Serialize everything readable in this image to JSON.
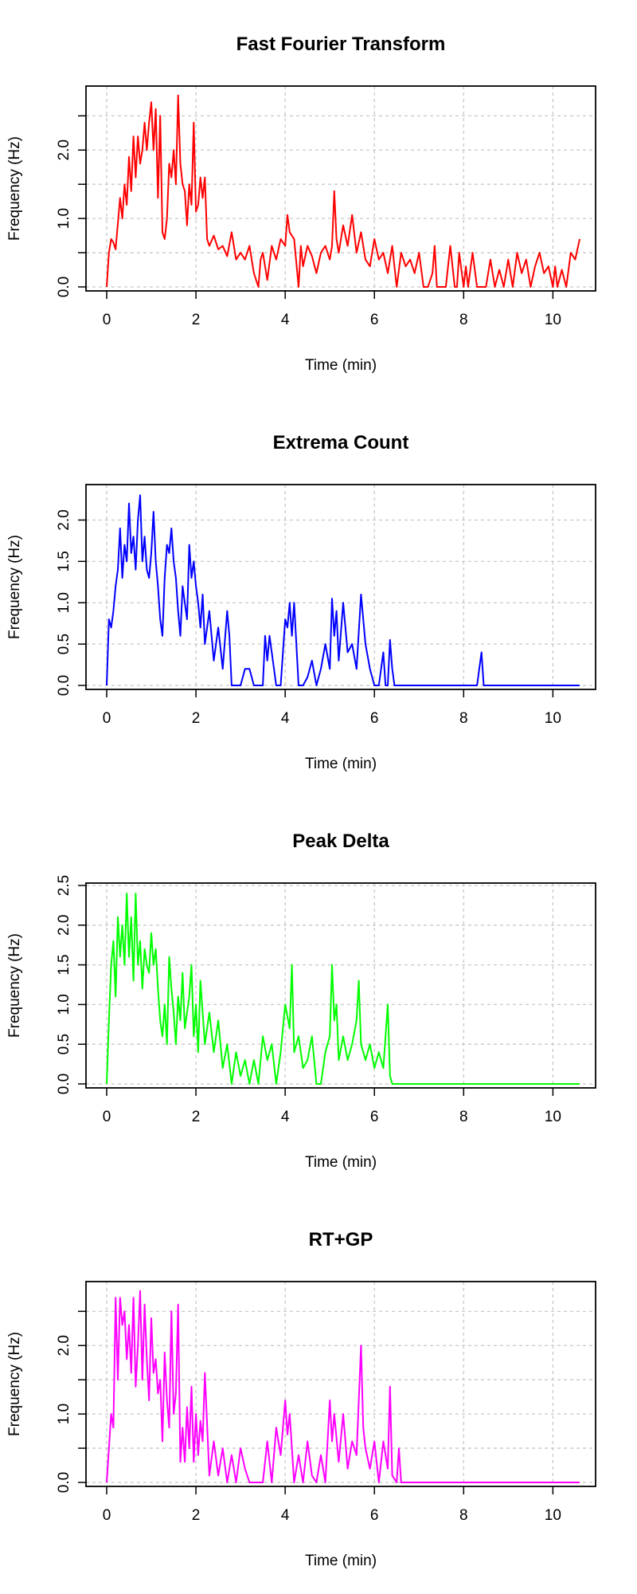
{
  "chart_data": [
    {
      "type": "line",
      "title": "Fast Fourier Transform",
      "xlabel": "Time (min)",
      "ylabel": "Frequency (Hz)",
      "xlim": [
        0,
        10.6
      ],
      "ylim": [
        0,
        2.9
      ],
      "xticks": [
        0,
        2,
        4,
        6,
        8,
        10
      ],
      "xtick_labels": [
        "0",
        "2",
        "4",
        "6",
        "8",
        "10"
      ],
      "yticks": [
        0,
        0.5,
        1.0,
        1.5,
        2.0,
        2.5
      ],
      "ytick_labels": [
        "0.0",
        "",
        "1.0",
        "",
        "2.0",
        ""
      ],
      "grid": true,
      "color": "#ff0000",
      "series": [
        {
          "x": [
            0,
            0.05,
            0.1,
            0.15,
            0.2,
            0.3,
            0.35,
            0.4,
            0.45,
            0.5,
            0.55,
            0.6,
            0.65,
            0.7,
            0.75,
            0.8,
            0.85,
            0.9,
            0.95,
            1.0,
            1.05,
            1.1,
            1.15,
            1.2,
            1.25,
            1.3,
            1.35,
            1.4,
            1.45,
            1.5,
            1.55,
            1.6,
            1.65,
            1.7,
            1.75,
            1.8,
            1.85,
            1.9,
            1.95,
            2.0,
            2.05,
            2.1,
            2.15,
            2.2,
            2.25,
            2.3,
            2.4,
            2.5,
            2.6,
            2.7,
            2.8,
            2.9,
            3.0,
            3.1,
            3.2,
            3.3,
            3.4,
            3.45,
            3.5,
            3.6,
            3.7,
            3.8,
            3.9,
            4.0,
            4.05,
            4.1,
            4.2,
            4.3,
            4.35,
            4.4,
            4.5,
            4.6,
            4.7,
            4.8,
            4.9,
            5.0,
            5.05,
            5.1,
            5.15,
            5.2,
            5.3,
            5.4,
            5.5,
            5.6,
            5.7,
            5.8,
            5.9,
            6.0,
            6.1,
            6.2,
            6.3,
            6.4,
            6.5,
            6.6,
            6.7,
            6.8,
            6.9,
            7.0,
            7.1,
            7.2,
            7.3,
            7.35,
            7.4,
            7.5,
            7.6,
            7.7,
            7.8,
            7.85,
            7.9,
            8.0,
            8.05,
            8.1,
            8.2,
            8.3,
            8.4,
            8.5,
            8.6,
            8.7,
            8.8,
            8.9,
            9.0,
            9.1,
            9.2,
            9.3,
            9.4,
            9.5,
            9.6,
            9.7,
            9.8,
            9.9,
            10.0,
            10.05,
            10.1,
            10.2,
            10.3,
            10.4,
            10.5,
            10.6
          ],
          "y": [
            0,
            0.5,
            0.7,
            0.65,
            0.55,
            1.3,
            1.0,
            1.5,
            1.2,
            1.9,
            1.4,
            2.2,
            1.6,
            2.2,
            1.8,
            2.0,
            2.4,
            2.0,
            2.4,
            2.7,
            2.0,
            2.6,
            1.3,
            2.5,
            0.8,
            0.7,
            1.0,
            1.8,
            1.6,
            2.0,
            1.5,
            2.8,
            1.8,
            1.5,
            1.4,
            0.9,
            1.5,
            1.2,
            2.4,
            1.1,
            1.2,
            1.6,
            1.3,
            1.6,
            0.7,
            0.6,
            0.75,
            0.55,
            0.6,
            0.45,
            0.8,
            0.4,
            0.5,
            0.4,
            0.6,
            0.2,
            0.0,
            0.4,
            0.5,
            0.1,
            0.6,
            0.4,
            0.7,
            0.6,
            1.05,
            0.8,
            0.7,
            0.0,
            0.6,
            0.3,
            0.6,
            0.45,
            0.2,
            0.5,
            0.6,
            0.4,
            0.6,
            1.4,
            0.7,
            0.5,
            0.9,
            0.6,
            1.05,
            0.5,
            0.8,
            0.4,
            0.3,
            0.7,
            0.4,
            0.5,
            0.2,
            0.6,
            0.0,
            0.5,
            0.3,
            0.4,
            0.2,
            0.5,
            0.0,
            0.0,
            0.2,
            0.6,
            0.0,
            0.0,
            0.0,
            0.6,
            0.0,
            0.0,
            0.5,
            0.0,
            0.3,
            0.0,
            0.5,
            0.0,
            0.0,
            0.0,
            0.4,
            0.0,
            0.25,
            0.0,
            0.4,
            0.0,
            0.5,
            0.2,
            0.4,
            0.0,
            0.3,
            0.5,
            0.2,
            0.3,
            0.0,
            0.3,
            0.0,
            0.25,
            0.0,
            0.5,
            0.4,
            0.7
          ]
        }
      ]
    },
    {
      "type": "line",
      "title": "Extrema Count",
      "xlabel": "Time (min)",
      "ylabel": "Frequency (Hz)",
      "xlim": [
        0,
        10.6
      ],
      "ylim": [
        0,
        2.4
      ],
      "xticks": [
        0,
        2,
        4,
        6,
        8,
        10
      ],
      "xtick_labels": [
        "0",
        "2",
        "4",
        "6",
        "8",
        "10"
      ],
      "yticks": [
        0,
        0.5,
        1.0,
        1.5,
        2.0
      ],
      "ytick_labels": [
        "0.0",
        "0.5",
        "1.0",
        "1.5",
        "2.0"
      ],
      "grid": true,
      "color": "#0000ff",
      "series": [
        {
          "x": [
            0,
            0.05,
            0.1,
            0.15,
            0.2,
            0.25,
            0.3,
            0.35,
            0.4,
            0.45,
            0.5,
            0.55,
            0.6,
            0.65,
            0.7,
            0.75,
            0.8,
            0.85,
            0.9,
            0.95,
            1.0,
            1.05,
            1.1,
            1.15,
            1.2,
            1.25,
            1.3,
            1.35,
            1.4,
            1.45,
            1.5,
            1.55,
            1.6,
            1.65,
            1.7,
            1.75,
            1.8,
            1.85,
            1.9,
            1.95,
            2.0,
            2.05,
            2.1,
            2.15,
            2.2,
            2.3,
            2.4,
            2.5,
            2.6,
            2.7,
            2.75,
            2.8,
            2.9,
            3.0,
            3.1,
            3.2,
            3.3,
            3.4,
            3.5,
            3.55,
            3.6,
            3.65,
            3.7,
            3.8,
            3.9,
            4.0,
            4.05,
            4.1,
            4.15,
            4.2,
            4.3,
            4.4,
            4.5,
            4.6,
            4.7,
            4.8,
            4.9,
            5.0,
            5.05,
            5.1,
            5.15,
            5.2,
            5.3,
            5.4,
            5.5,
            5.6,
            5.7,
            5.75,
            5.8,
            5.9,
            6.0,
            6.1,
            6.2,
            6.25,
            6.3,
            6.35,
            6.4,
            6.45,
            6.5,
            7.0,
            7.5,
            8.0,
            8.3,
            8.4,
            8.45,
            8.5,
            9.0,
            9.5,
            10.0,
            10.6
          ],
          "y": [
            0,
            0.8,
            0.7,
            0.9,
            1.2,
            1.4,
            1.9,
            1.3,
            1.7,
            1.5,
            2.2,
            1.6,
            1.8,
            1.4,
            2.0,
            2.3,
            1.5,
            1.8,
            1.4,
            1.3,
            1.6,
            2.1,
            1.5,
            1.2,
            0.8,
            0.6,
            1.3,
            1.7,
            1.6,
            1.9,
            1.5,
            1.3,
            0.9,
            0.6,
            1.2,
            1.0,
            0.8,
            1.7,
            1.3,
            1.5,
            1.2,
            1.0,
            0.7,
            1.1,
            0.5,
            0.9,
            0.3,
            0.7,
            0.2,
            0.9,
            0.6,
            0.0,
            0.0,
            0.0,
            0.2,
            0.2,
            0.0,
            0.0,
            0.0,
            0.6,
            0.3,
            0.6,
            0.4,
            0.0,
            0.0,
            0.8,
            0.7,
            1.0,
            0.6,
            1.0,
            0.0,
            0.0,
            0.1,
            0.3,
            0.0,
            0.2,
            0.5,
            0.2,
            1.05,
            0.6,
            0.9,
            0.3,
            1.0,
            0.4,
            0.5,
            0.2,
            1.1,
            0.8,
            0.5,
            0.2,
            0.0,
            0.0,
            0.4,
            0.0,
            0.0,
            0.55,
            0.2,
            0.0,
            0.0,
            0.0,
            0.0,
            0.0,
            0.0,
            0.4,
            0.0,
            0.0,
            0.0,
            0.0,
            0.0,
            0.0
          ]
        }
      ]
    },
    {
      "type": "line",
      "title": "Peak Delta",
      "xlabel": "Time (min)",
      "ylabel": "Frequency (Hz)",
      "xlim": [
        0,
        10.6
      ],
      "ylim": [
        0,
        2.5
      ],
      "xticks": [
        0,
        2,
        4,
        6,
        8,
        10
      ],
      "xtick_labels": [
        "0",
        "2",
        "4",
        "6",
        "8",
        "10"
      ],
      "yticks": [
        0,
        0.5,
        1.0,
        1.5,
        2.0,
        2.5
      ],
      "ytick_labels": [
        "0.0",
        "0.5",
        "1.0",
        "1.5",
        "2.0",
        "2.5"
      ],
      "grid": true,
      "color": "#00ff00",
      "series": [
        {
          "x": [
            0,
            0.05,
            0.1,
            0.15,
            0.2,
            0.25,
            0.3,
            0.35,
            0.4,
            0.45,
            0.5,
            0.55,
            0.6,
            0.65,
            0.7,
            0.75,
            0.8,
            0.85,
            0.9,
            0.95,
            1.0,
            1.05,
            1.1,
            1.15,
            1.2,
            1.25,
            1.3,
            1.35,
            1.4,
            1.45,
            1.5,
            1.55,
            1.6,
            1.65,
            1.7,
            1.75,
            1.8,
            1.85,
            1.9,
            1.95,
            2.0,
            2.05,
            2.1,
            2.2,
            2.3,
            2.4,
            2.5,
            2.6,
            2.7,
            2.8,
            2.9,
            3.0,
            3.1,
            3.2,
            3.3,
            3.4,
            3.5,
            3.6,
            3.7,
            3.8,
            3.9,
            4.0,
            4.1,
            4.15,
            4.2,
            4.3,
            4.4,
            4.5,
            4.6,
            4.7,
            4.8,
            4.9,
            5.0,
            5.05,
            5.1,
            5.15,
            5.2,
            5.3,
            5.4,
            5.5,
            5.6,
            5.65,
            5.7,
            5.8,
            5.9,
            6.0,
            6.1,
            6.2,
            6.3,
            6.35,
            6.4,
            6.5,
            7.0,
            7.5,
            8.0,
            8.5,
            9.0,
            9.5,
            10.0,
            10.6
          ],
          "y": [
            0,
            0.8,
            1.5,
            1.8,
            1.1,
            2.1,
            1.6,
            2.0,
            1.5,
            2.4,
            1.6,
            2.1,
            1.3,
            2.4,
            1.5,
            1.8,
            1.2,
            1.7,
            1.5,
            1.4,
            1.9,
            1.5,
            1.7,
            1.2,
            0.8,
            0.6,
            1.0,
            0.5,
            1.6,
            1.2,
            0.9,
            0.5,
            1.1,
            0.8,
            1.4,
            0.7,
            0.9,
            1.1,
            1.5,
            0.6,
            1.0,
            0.4,
            1.3,
            0.5,
            0.9,
            0.4,
            0.8,
            0.2,
            0.5,
            0.0,
            0.4,
            0.1,
            0.3,
            0.0,
            0.3,
            0.0,
            0.6,
            0.3,
            0.5,
            0.0,
            0.4,
            1.0,
            0.7,
            1.5,
            0.4,
            0.6,
            0.2,
            0.3,
            0.6,
            0.0,
            0.0,
            0.4,
            0.6,
            1.5,
            0.8,
            1.0,
            0.3,
            0.6,
            0.3,
            0.5,
            0.8,
            1.3,
            0.5,
            0.3,
            0.5,
            0.2,
            0.4,
            0.2,
            1.0,
            0.1,
            0.0,
            0.0,
            0.0,
            0.0,
            0.0,
            0.0,
            0.0,
            0.0,
            0.0,
            0.0
          ]
        }
      ]
    },
    {
      "type": "line",
      "title": "RT+GP",
      "xlabel": "Time (min)",
      "ylabel": "Frequency (Hz)",
      "xlim": [
        0,
        10.6
      ],
      "ylim": [
        0,
        2.9
      ],
      "xticks": [
        0,
        2,
        4,
        6,
        8,
        10
      ],
      "xtick_labels": [
        "0",
        "2",
        "4",
        "6",
        "8",
        "10"
      ],
      "yticks": [
        0,
        0.5,
        1.0,
        1.5,
        2.0,
        2.5
      ],
      "ytick_labels": [
        "0.0",
        "",
        "1.0",
        "",
        "2.0",
        ""
      ],
      "grid": true,
      "color": "#ff00ff",
      "series": [
        {
          "x": [
            0,
            0.1,
            0.15,
            0.2,
            0.25,
            0.3,
            0.35,
            0.4,
            0.45,
            0.5,
            0.55,
            0.6,
            0.65,
            0.7,
            0.75,
            0.8,
            0.85,
            0.9,
            0.95,
            1.0,
            1.05,
            1.1,
            1.15,
            1.2,
            1.25,
            1.3,
            1.35,
            1.4,
            1.45,
            1.5,
            1.55,
            1.6,
            1.65,
            1.7,
            1.75,
            1.8,
            1.85,
            1.9,
            1.95,
            2.0,
            2.05,
            2.1,
            2.15,
            2.2,
            2.3,
            2.4,
            2.5,
            2.6,
            2.7,
            2.8,
            2.9,
            3.0,
            3.1,
            3.2,
            3.3,
            3.4,
            3.5,
            3.6,
            3.7,
            3.8,
            3.9,
            4.0,
            4.05,
            4.1,
            4.2,
            4.3,
            4.4,
            4.5,
            4.6,
            4.7,
            4.8,
            4.9,
            5.0,
            5.05,
            5.1,
            5.2,
            5.3,
            5.4,
            5.5,
            5.6,
            5.7,
            5.75,
            5.8,
            5.9,
            6.0,
            6.1,
            6.2,
            6.3,
            6.35,
            6.4,
            6.5,
            6.55,
            6.6,
            7.0,
            7.5,
            8.0,
            8.5,
            9.0,
            9.5,
            10.0,
            10.6
          ],
          "y": [
            0,
            1.0,
            0.8,
            2.7,
            1.5,
            2.7,
            2.3,
            2.5,
            1.8,
            2.3,
            1.6,
            2.7,
            1.4,
            2.0,
            2.8,
            1.5,
            2.6,
            1.8,
            1.2,
            2.4,
            1.6,
            1.8,
            1.3,
            1.5,
            0.6,
            1.9,
            1.2,
            0.8,
            2.5,
            1.0,
            1.3,
            2.6,
            0.3,
            0.8,
            0.3,
            1.1,
            0.5,
            1.4,
            0.3,
            1.0,
            0.4,
            0.9,
            0.6,
            1.6,
            0.1,
            0.6,
            0.1,
            0.5,
            0.0,
            0.4,
            0.0,
            0.5,
            0.2,
            0.0,
            0.0,
            0.0,
            0.0,
            0.6,
            0.0,
            0.8,
            0.4,
            1.2,
            0.7,
            1.0,
            0.0,
            0.4,
            0.0,
            0.6,
            0.1,
            0.0,
            0.4,
            0.0,
            1.2,
            0.6,
            1.0,
            0.3,
            1.0,
            0.2,
            0.6,
            0.4,
            2.0,
            0.8,
            0.5,
            0.2,
            0.6,
            0.0,
            0.6,
            0.2,
            1.4,
            0.1,
            0.0,
            0.5,
            0.0,
            0.0,
            0.0,
            0.0,
            0.0,
            0.0,
            0.0,
            0.0,
            0.0
          ]
        }
      ]
    }
  ]
}
